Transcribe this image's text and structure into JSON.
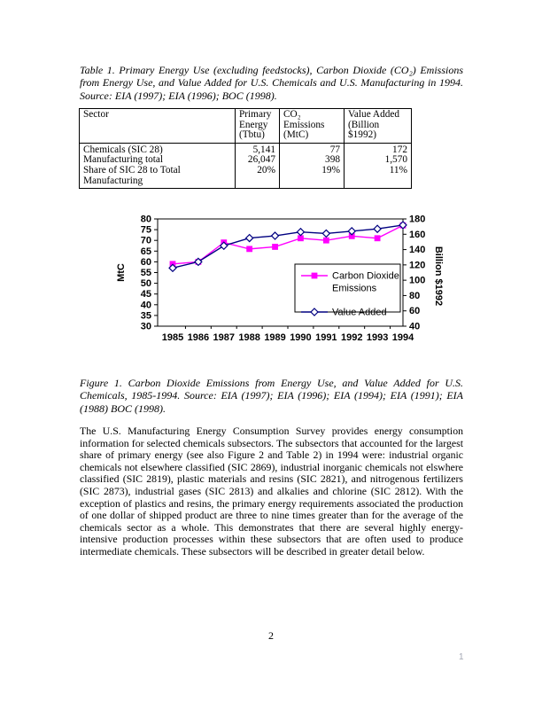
{
  "page": {
    "number": "2",
    "corner_mark": "1"
  },
  "table_caption": "Table 1. Primary Energy Use (excluding feedstocks), Carbon Dioxide (CO₂) Emissions from Energy Use, and Value Added for U.S. Chemicals and U.S. Manufacturing in 1994. Source: EIA (1997); EIA (1996); BOC (1998).",
  "table": {
    "headers": [
      "Sector",
      "Primary\nEnergy\n(Tbtu)",
      "CO₂ Emissions\n(MtC)",
      "Value Added\n(Billion $1992)"
    ],
    "rows": [
      [
        "Chemicals (SIC 28)",
        "5,141",
        "77",
        "172"
      ],
      [
        "Manufacturing total",
        "26,047",
        "398",
        "1,570"
      ],
      [
        "Share of SIC 28 to Total Manufacturing",
        "20%",
        "19%",
        "11%"
      ]
    ]
  },
  "chart_data": {
    "type": "line",
    "title": "",
    "categories": [
      "1985",
      "1986",
      "1987",
      "1988",
      "1989",
      "1990",
      "1991",
      "1992",
      "1993",
      "1994"
    ],
    "series": [
      {
        "name": "Carbon Dioxide Emissions",
        "legend_lines": [
          "Carbon Dioxide",
          "Emissions"
        ],
        "axis": "left",
        "marker": "square",
        "color": "#ff00ff",
        "values": [
          59,
          60,
          69,
          66,
          67,
          71,
          70,
          72,
          71,
          77
        ]
      },
      {
        "name": "Value Added",
        "legend_lines": [
          "Value Added"
        ],
        "axis": "right",
        "marker": "diamond",
        "color": "#000080",
        "values": [
          116,
          124,
          145,
          155,
          158,
          163,
          161,
          164,
          167,
          172
        ]
      }
    ],
    "left_axis": {
      "label": "MtC",
      "min": 30,
      "max": 80,
      "step": 5
    },
    "right_axis": {
      "label": "Billion $1992",
      "min": 40,
      "max": 180,
      "step": 20
    },
    "grid": false,
    "legend_position": "inside-right",
    "plot_border": true
  },
  "figure_caption": "Figure 1. Carbon Dioxide Emissions from Energy Use, and Value Added for U.S. Chemicals, 1985-1994. Source: EIA (1997); EIA (1996); EIA (1994); EIA (1991); EIA (1988) BOC (1998).",
  "body_text": "The U.S. Manufacturing Energy Consumption Survey provides energy consumption information for selected chemicals subsectors. The subsectors that accounted for the largest share of primary energy (see also Figure 2 and Table 2) in 1994 were: industrial organic chemicals not elsewhere classified (SIC 2869), industrial inorganic chemicals not elswhere classified (SIC 2819), plastic materials and resins (SIC 2821), and nitrogenous fertilizers (SIC 2873), industrial gases (SIC 2813) and alkalies and chlorine (SIC 2812). With the exception of plastics and resins, the primary energy requirements associated the production of one dollar of shipped product are three to nine times greater than for the average of the chemicals sector as a whole. This demonstrates that there are several highly energy-intensive production processes within these subsectors that are often used to produce intermediate chemicals. These subsectors will be described in greater detail below."
}
